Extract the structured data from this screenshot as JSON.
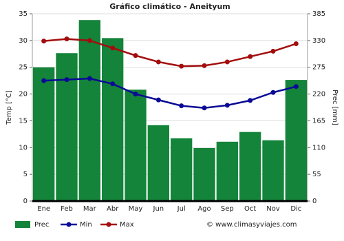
{
  "chart_data": {
    "type": "bar-line",
    "title": "Gráfico climático - Aneityum",
    "y_label": "Temp [°C]",
    "y2_label": "Prec [mm]",
    "source": "© www.climasyviajes.com",
    "categories": [
      "Ene",
      "Feb",
      "Mar",
      "Abr",
      "May",
      "Jun",
      "Jul",
      "Ago",
      "Sep",
      "Oct",
      "Nov",
      "Dic"
    ],
    "series": [
      {
        "name": "Prec",
        "type": "bar",
        "axis": "y2",
        "color": "#13843a",
        "values": [
          275,
          304,
          372,
          335,
          229,
          156,
          129,
          109,
          122,
          142,
          125,
          249
        ]
      },
      {
        "name": "Min",
        "type": "line",
        "color": "#0a0a96",
        "values": [
          22.5,
          22.7,
          22.9,
          21.9,
          20.0,
          18.9,
          17.8,
          17.4,
          17.9,
          18.8,
          20.3,
          21.4
        ]
      },
      {
        "name": "Max",
        "type": "line",
        "color": "#a30d0d",
        "values": [
          29.9,
          30.3,
          30.0,
          28.6,
          27.2,
          26.0,
          25.2,
          25.3,
          26.0,
          27.0,
          28.0,
          29.4
        ]
      }
    ],
    "ylim": [
      0,
      35
    ],
    "yticks": [
      0,
      5,
      10,
      15,
      20,
      25,
      30,
      35
    ],
    "y2lim": [
      0,
      385
    ],
    "y2ticks": [
      0,
      55,
      110,
      165,
      220,
      275,
      330,
      385
    ],
    "grid": true
  }
}
